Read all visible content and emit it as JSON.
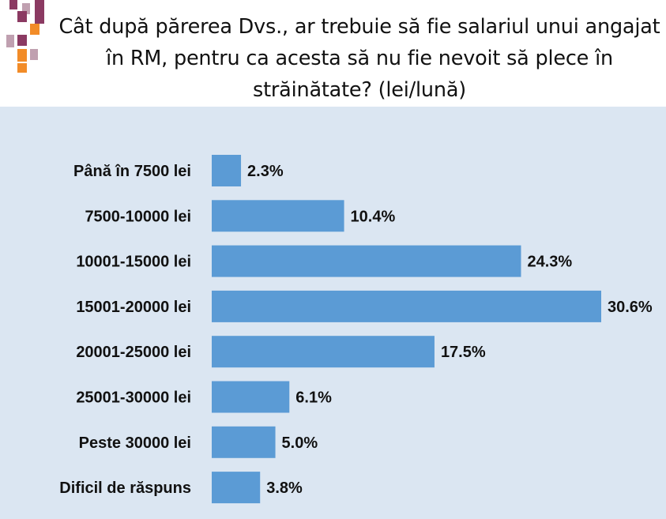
{
  "chart_data": {
    "type": "bar",
    "orientation": "horizontal",
    "title": "Cât după părerea Dvs., ar trebuie să fie salariul unui angajat în RM, pentru ca acesta să nu fie nevoit să plece în străinătate? (lei/lună)",
    "categories": [
      "Până în 7500  lei",
      "7500-10000 lei",
      "10001-15000 lei",
      "15001-20000 lei",
      "20001-25000 lei",
      "25001-30000 lei",
      "Peste 30000 lei",
      "Dificil de răspuns"
    ],
    "values": [
      2.3,
      10.4,
      24.3,
      30.6,
      17.5,
      6.1,
      5.0,
      3.8
    ],
    "value_labels": [
      "2.3%",
      "10.4%",
      "24.3%",
      "30.6%",
      "17.5%",
      "6.1%",
      "5.0%",
      "3.8%"
    ],
    "unit": "%",
    "xlim": [
      0,
      30.6
    ],
    "grid": false,
    "legend": "none",
    "bar_color": "#5b9bd5",
    "background_color": "#dbe6f2"
  },
  "decoration": {
    "square_colors": [
      "#8b3a62",
      "#f28c28",
      "#c0a0b0"
    ]
  }
}
